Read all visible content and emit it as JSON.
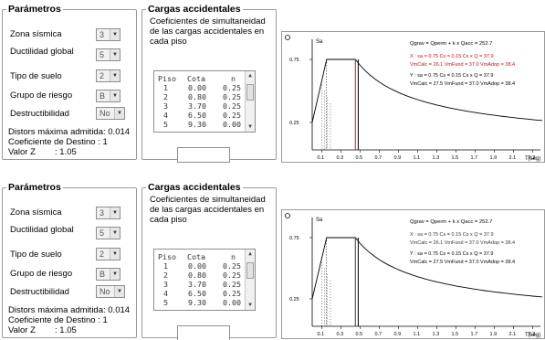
{
  "parametros": {
    "title": "Parámetros",
    "zona_sismica": {
      "label": "Zona sísmica",
      "value": "3"
    },
    "ductilidad_global": {
      "label": "Ductilidad global",
      "value": "5"
    },
    "tipo_de_suelo": {
      "label": "Tipo de suelo",
      "value": "2"
    },
    "grupo_de_riesgo": {
      "label": "Grupo de riesgo",
      "value": "B"
    },
    "destructibilidad": {
      "label": "Destructibilidad",
      "value": "No"
    },
    "distors_maxima": "Distors máxima admitida: 0.014",
    "coef_destino": "Coeficiente de Destino : 1",
    "valor_z": "Valor Z        : 1.05"
  },
  "cargas": {
    "title": "Cargas accidentales",
    "description": "Coeficientes de simultaneidad de las cargas accidentales en cada piso",
    "columns": [
      "Piso",
      "Cota",
      "n"
    ],
    "rows": [
      {
        "piso": "1",
        "cota": "0.00",
        "n": "0.25"
      },
      {
        "piso": "2",
        "cota": "0.80",
        "n": "0.25"
      },
      {
        "piso": "3",
        "cota": "3.70",
        "n": "0.25"
      },
      {
        "piso": "4",
        "cota": "6.50",
        "n": "0.25"
      },
      {
        "piso": "5",
        "cota": "9.30",
        "n": "0.00"
      }
    ],
    "edit_value": ""
  },
  "chart": {
    "y_axis_label": "Sa",
    "x_axis_label": "T(seg)",
    "x_ticks": [
      "0.1",
      "0.3",
      "0.5",
      "0.7",
      "0.9",
      "1.1",
      "1.3",
      "1.5",
      "1.7",
      "1.9",
      "2.1",
      "2.3"
    ],
    "y_ticks": [
      "0.75",
      "0.25"
    ],
    "formula": "Qgrav = Qperm + k x Qacc = 252.7",
    "x_line1": "X : sa = 0.75  Cs = 0.15  Cs x Q = 37.9",
    "x_line2": "VmCalc = 26.1  VmFund = 37.0  VmAdop = 38.4",
    "y_line1": "Y : sa = 0.75  Cs = 0.15  Cs x Q = 37.9",
    "y_line2": "VmCalc = 27.5  VmFund = 37.0  VmAdop = 38.4",
    "curve_color": "#000000",
    "red_color": "#d01010",
    "black_color": "#000000"
  }
}
